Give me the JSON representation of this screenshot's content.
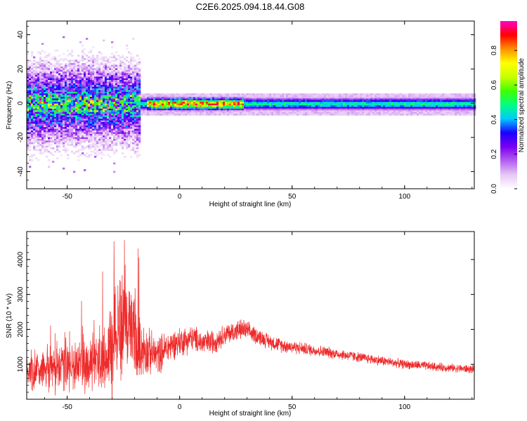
{
  "title": "C2E6.2025.094.18.44.G08",
  "colors": {
    "snr_line": "#ee2a2a",
    "axis": "#000000"
  },
  "chart_data": [
    {
      "type": "heatmap",
      "title": "C2E6.2025.094.18.44.G08",
      "xlabel": "Height of straight line (km)",
      "ylabel": "Frequency (Hz)",
      "xlim": [
        -68,
        131
      ],
      "ylim": [
        -50,
        48
      ],
      "x_ticks": [
        -50,
        0,
        50,
        100
      ],
      "y_ticks": [
        -40,
        -20,
        0,
        20,
        40
      ],
      "colorbar": {
        "label": "Normalized spectral amplitude",
        "range": [
          0,
          0.97
        ],
        "ticks": [
          0.0,
          0.2,
          0.4,
          0.6,
          0.8
        ],
        "colormap": [
          "#ffffff",
          "#e6c8f5",
          "#b45ff0",
          "#7a00f0",
          "#1a00ff",
          "#00c8ff",
          "#00ff80",
          "#40ff00",
          "#c8ff00",
          "#ffff00",
          "#ff9000",
          "#ff0000",
          "#ff00c8"
        ]
      },
      "features": {
        "carrier_frequency_hz": 0,
        "noisy_region_x": [
          -68,
          -18
        ],
        "noisy_spread_hz": [
          -12,
          10
        ],
        "stable_band_x": [
          -18,
          131
        ],
        "stable_band_halfwidth_hz": 3,
        "peak_amplitude_x": [
          -15,
          28
        ]
      }
    },
    {
      "type": "line",
      "title": "",
      "xlabel": "Height of straight line (km)",
      "ylabel": "SNR (10 * v/v)",
      "xlim": [
        -68,
        131
      ],
      "ylim": [
        0,
        4800
      ],
      "x_ticks": [
        -50,
        0,
        50,
        100
      ],
      "y_ticks": [
        1000,
        2000,
        3000,
        4000
      ],
      "series": [
        {
          "x": [
            -68,
            -60,
            -55,
            -50,
            -45,
            -40,
            -35,
            -32,
            -30,
            -28,
            -25,
            -22,
            -20,
            -18,
            -15,
            -12,
            -10,
            -8,
            -5,
            -2,
            0,
            3,
            5,
            8,
            10,
            15,
            20,
            25,
            28,
            30,
            35,
            40,
            45,
            50,
            55,
            60,
            65,
            70,
            75,
            80,
            85,
            90,
            95,
            100,
            105,
            110,
            115,
            120,
            125,
            131
          ],
          "y_center": [
            800,
            850,
            900,
            950,
            1000,
            1050,
            1100,
            1200,
            1600,
            2000,
            2200,
            2000,
            1800,
            1500,
            1400,
            1300,
            1250,
            1350,
            1500,
            1600,
            1650,
            1700,
            1750,
            1700,
            1600,
            1650,
            1850,
            1950,
            2000,
            1950,
            1800,
            1650,
            1550,
            1500,
            1450,
            1400,
            1350,
            1300,
            1250,
            1200,
            1150,
            1100,
            1050,
            1000,
            980,
            950,
            920,
            900,
            880,
            850
          ],
          "y_spread": [
            450,
            500,
            600,
            650,
            650,
            650,
            650,
            700,
            1500,
            1500,
            1400,
            1200,
            1100,
            700,
            600,
            500,
            450,
            450,
            400,
            350,
            350,
            350,
            300,
            300,
            300,
            300,
            250,
            250,
            250,
            230,
            200,
            180,
            170,
            160,
            150,
            140,
            140,
            130,
            130,
            120,
            120,
            120,
            110,
            110,
            110,
            110,
            100,
            100,
            100,
            100
          ],
          "max_value": 4800
        }
      ]
    }
  ]
}
